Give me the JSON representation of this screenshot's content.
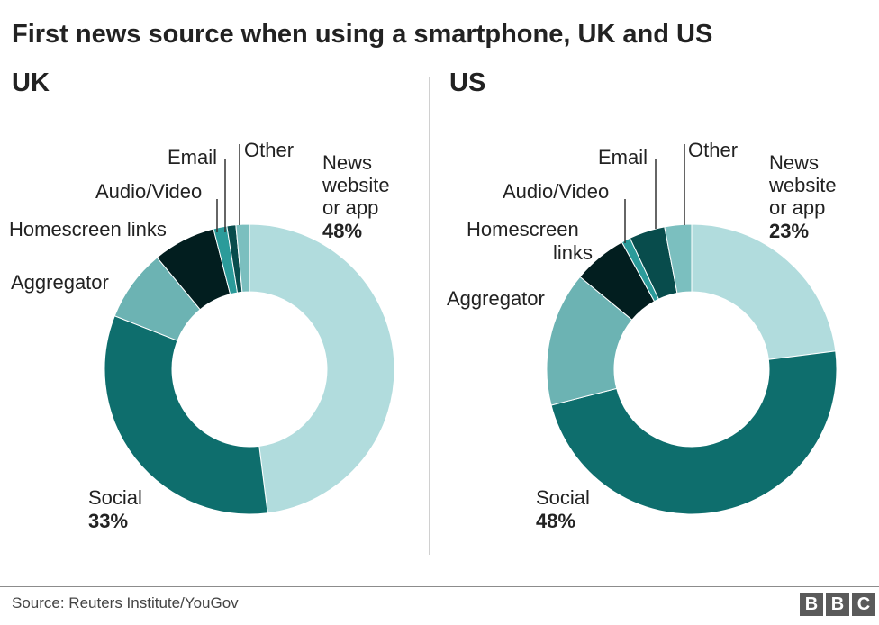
{
  "title": "First news source when using a smartphone, UK and US",
  "source": "Source: Reuters Institute/YouGov",
  "logo_letters": [
    "B",
    "B",
    "C"
  ],
  "colors": {
    "news": "#b1dcdd",
    "social": "#0e6e6d",
    "aggregator": "#6cb3b3",
    "homescreen": "#021e1f",
    "audio": "#2b9b9a",
    "email": "#084c4c",
    "other": "#7bbfbf"
  },
  "chart_data": [
    {
      "type": "pie",
      "panel": "UK",
      "title": "UK",
      "slices": [
        {
          "key": "news",
          "label": "News website or app",
          "value": 48,
          "value_label": "48%"
        },
        {
          "key": "social",
          "label": "Social",
          "value": 33,
          "value_label": "33%"
        },
        {
          "key": "aggregator",
          "label": "Aggregator",
          "value": 8
        },
        {
          "key": "homescreen",
          "label": "Homescreen links",
          "value": 7
        },
        {
          "key": "audio",
          "label": "Audio/Video",
          "value": 1.5
        },
        {
          "key": "email",
          "label": "Email",
          "value": 1
        },
        {
          "key": "other",
          "label": "Other",
          "value": 1.5
        }
      ]
    },
    {
      "type": "pie",
      "panel": "US",
      "title": "US",
      "slices": [
        {
          "key": "news",
          "label": "News website or app",
          "value": 23,
          "value_label": "23%"
        },
        {
          "key": "social",
          "label": "Social",
          "value": 48,
          "value_label": "48%"
        },
        {
          "key": "aggregator",
          "label": "Aggregator",
          "value": 15
        },
        {
          "key": "homescreen",
          "label": "Homescreen links",
          "value": 6
        },
        {
          "key": "audio",
          "label": "Audio/Video",
          "value": 1
        },
        {
          "key": "email",
          "label": "Email",
          "value": 4
        },
        {
          "key": "other",
          "label": "Other",
          "value": 3
        }
      ]
    }
  ]
}
